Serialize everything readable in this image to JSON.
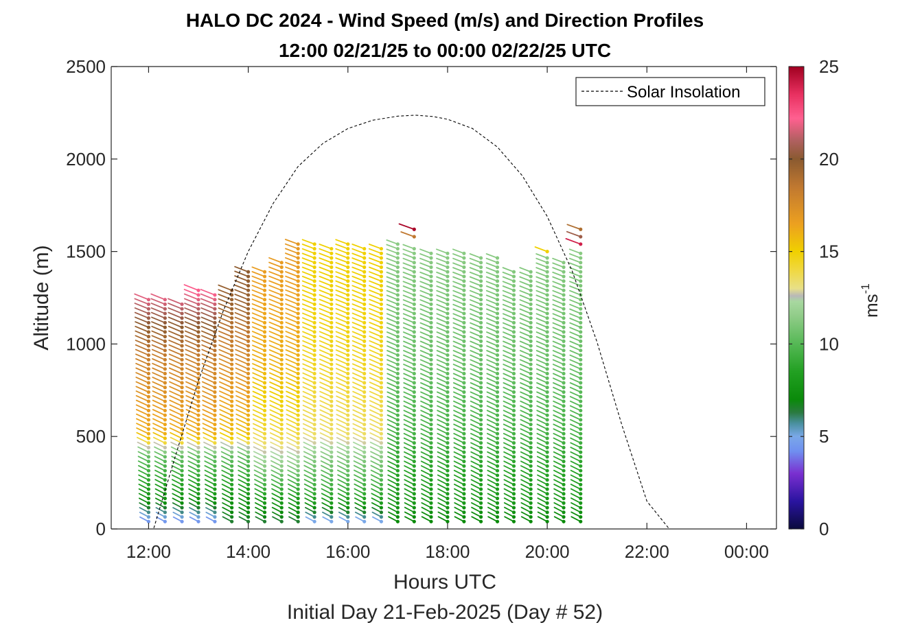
{
  "chart_data": {
    "type": "scatter",
    "title": "HALO DC 2024 - Wind Speed (m/s) and Direction Profiles",
    "subtitle": "12:00 02/21/25 to 00:00 02/22/25  UTC",
    "xlabel": "Hours UTC",
    "xlabel2": "Initial Day 21-Feb-2025 (Day # 52)",
    "ylabel": "Altitude (m)",
    "xlim": [
      11.25,
      24.6
    ],
    "ylim": [
      0,
      2500
    ],
    "x_ticks": [
      {
        "value": 12,
        "label": "12:00"
      },
      {
        "value": 14,
        "label": "14:00"
      },
      {
        "value": 16,
        "label": "16:00"
      },
      {
        "value": 18,
        "label": "18:00"
      },
      {
        "value": 20,
        "label": "20:00"
      },
      {
        "value": 22,
        "label": "22:00"
      },
      {
        "value": 24,
        "label": "00:00"
      }
    ],
    "y_ticks": [
      {
        "value": 0,
        "label": "0"
      },
      {
        "value": 500,
        "label": "500"
      },
      {
        "value": 1000,
        "label": "1000"
      },
      {
        "value": 1500,
        "label": "1500"
      },
      {
        "value": 2000,
        "label": "2000"
      },
      {
        "value": 2500,
        "label": "2500"
      }
    ],
    "colorbar": {
      "label": "ms",
      "label_exponent": "-1",
      "range": [
        0,
        25
      ],
      "ticks": [
        {
          "value": 0,
          "label": "0"
        },
        {
          "value": 5,
          "label": "5"
        },
        {
          "value": 10,
          "label": "10"
        },
        {
          "value": 15,
          "label": "15"
        },
        {
          "value": 20,
          "label": "20"
        },
        {
          "value": 25,
          "label": "25"
        }
      ],
      "stops": [
        {
          "v": 0,
          "c": "#0a0a3c"
        },
        {
          "v": 1.5,
          "c": "#2a14a0"
        },
        {
          "v": 3,
          "c": "#7a2fd0"
        },
        {
          "v": 4.2,
          "c": "#6f8ff0"
        },
        {
          "v": 5,
          "c": "#7aa8e8"
        },
        {
          "v": 5.7,
          "c": "#4a90a0"
        },
        {
          "v": 6.3,
          "c": "#2a7a40"
        },
        {
          "v": 7,
          "c": "#0a8a0a"
        },
        {
          "v": 8.5,
          "c": "#22a022"
        },
        {
          "v": 10,
          "c": "#55b855"
        },
        {
          "v": 11.5,
          "c": "#90cc88"
        },
        {
          "v": 12.3,
          "c": "#a8d8a0"
        },
        {
          "v": 12.6,
          "c": "#b8b8b8"
        },
        {
          "v": 13,
          "c": "#e8e088"
        },
        {
          "v": 14,
          "c": "#f0d840"
        },
        {
          "v": 15,
          "c": "#f0d000"
        },
        {
          "v": 16.5,
          "c": "#eca020"
        },
        {
          "v": 18.5,
          "c": "#c07830"
        },
        {
          "v": 20,
          "c": "#8a5a30"
        },
        {
          "v": 21,
          "c": "#b06060"
        },
        {
          "v": 22.2,
          "c": "#ff6090"
        },
        {
          "v": 23.5,
          "c": "#e83060"
        },
        {
          "v": 25,
          "c": "#a00020"
        }
      ]
    },
    "legend": {
      "entries": [
        "Solar Insolation"
      ],
      "placement": "top-right"
    },
    "series": [
      {
        "name": "Solar Insolation",
        "style": "dashed",
        "x": [
          11.25,
          12.1,
          12.5,
          13,
          13.5,
          14,
          14.5,
          15,
          15.5,
          16,
          16.5,
          17,
          17.35,
          17.7,
          18,
          18.5,
          19,
          19.5,
          20,
          20.5,
          21,
          21.5,
          22,
          22.45,
          23,
          24,
          24.6
        ],
        "y": [
          0,
          0,
          360,
          800,
          1180,
          1500,
          1760,
          1960,
          2085,
          2165,
          2210,
          2232,
          2237,
          2230,
          2215,
          2165,
          2065,
          1910,
          1690,
          1395,
          1010,
          560,
          150,
          0,
          0,
          0,
          0
        ]
      }
    ],
    "wind_profiles": {
      "profile_times": [
        12.0,
        12.33,
        12.67,
        13.0,
        13.33,
        13.67,
        14.0,
        14.33,
        14.67,
        15.0,
        15.33,
        15.67,
        16.0,
        16.33,
        16.67,
        17.0,
        17.33,
        17.67,
        18.0,
        18.33,
        18.67,
        19.0,
        19.33,
        19.67,
        20.0,
        20.33,
        20.67
      ],
      "top_altitudes": [
        1260,
        1250,
        1230,
        1290,
        1270,
        1310,
        1410,
        1410,
        1460,
        1560,
        1540,
        1520,
        1540,
        1530,
        1520,
        1560,
        1530,
        1500,
        1510,
        1490,
        1470,
        1480,
        1410,
        1390,
        1480,
        1450,
        1500
      ],
      "altitude_step_m": 25,
      "lowest_altitude_m": 40,
      "speed_profiles": [
        {
          "times": [
            12.0,
            12.33,
            12.67,
            13.0,
            13.33
          ],
          "altitudes": [
            40,
            150,
            400,
            500,
            900,
            1100,
            1300
          ],
          "speeds": [
            4.5,
            7.5,
            10.5,
            16.0,
            18.0,
            20.0,
            22.5
          ]
        },
        {
          "times": [
            13.67,
            14.0
          ],
          "altitudes": [
            40,
            150,
            400,
            500,
            900,
            1200,
            1450
          ],
          "speeds": [
            6.5,
            7.5,
            10.5,
            15.5,
            17.5,
            19.5,
            20.0
          ]
        },
        {
          "times": [
            14.33,
            14.67,
            15.0
          ],
          "altitudes": [
            40,
            150,
            400,
            500,
            900,
            1300,
            1600
          ],
          "speeds": [
            6.5,
            8.0,
            12.5,
            14.0,
            16.0,
            16.5,
            17.0
          ]
        },
        {
          "times": [
            15.33,
            15.67,
            16.0,
            16.33,
            16.67
          ],
          "altitudes": [
            40,
            150,
            400,
            500,
            900,
            1300,
            1600
          ],
          "speeds": [
            5.0,
            8.5,
            11.5,
            13.5,
            14.5,
            15.0,
            15.0
          ]
        },
        {
          "times": [
            17.0,
            17.33,
            17.67,
            18.0,
            18.33,
            18.67,
            19.0,
            19.33,
            19.67,
            20.0,
            20.33,
            20.67
          ],
          "altitudes": [
            40,
            150,
            400,
            500,
            900,
            1300,
            1600
          ],
          "speeds": [
            7.0,
            8.0,
            9.0,
            9.5,
            10.5,
            11.0,
            11.5
          ]
        }
      ],
      "extra_points": [
        {
          "time": 17.33,
          "altitude": 1620,
          "speed": 24.8
        },
        {
          "time": 17.33,
          "altitude": 1580,
          "speed": 18.5
        },
        {
          "time": 20.67,
          "altitude": 1620,
          "speed": 19.0
        },
        {
          "time": 20.67,
          "altitude": 1580,
          "speed": 20.5
        },
        {
          "time": 20.67,
          "altitude": 1540,
          "speed": 24.0
        },
        {
          "time": 20.0,
          "altitude": 1500,
          "speed": 15.0
        }
      ],
      "direction": "from northwest, barbs point to upper-left"
    }
  }
}
